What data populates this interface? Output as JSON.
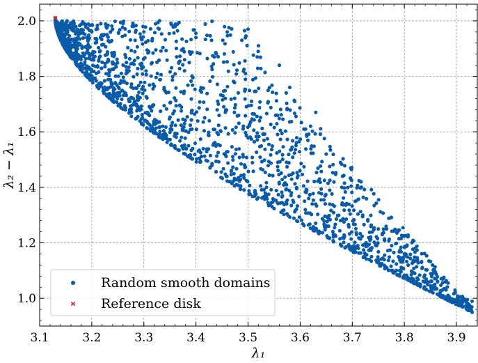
{
  "chart_data": {
    "type": "scatter",
    "title": "",
    "xlabel": "λ₁",
    "ylabel": "λ₂ − λ₁",
    "xlim": [
      3.1,
      3.94
    ],
    "ylim": [
      0.9,
      2.06
    ],
    "xticks": [
      "3.1",
      "3.2",
      "3.3",
      "3.4",
      "3.5",
      "3.6",
      "3.7",
      "3.8",
      "3.9"
    ],
    "yticks": [
      "1.0",
      "1.2",
      "1.4",
      "1.6",
      "1.8",
      "2.0"
    ],
    "grid": true,
    "legend_position": "lower-left",
    "series": [
      {
        "name": "Random smooth domains",
        "marker": "circle",
        "color": "#0a5ba8",
        "approximate_point_count": 2000,
        "envelope_description": "cloud bounded below by a curve from (3.13, 2.01) down to (3.93, 0.95) and above by a ridge from (3.15, 1.98) to (3.93, 0.96)",
        "points": [
          [
            3.13,
            2.01
          ],
          [
            3.14,
            1.99
          ],
          [
            3.15,
            1.97
          ],
          [
            3.16,
            1.98
          ],
          [
            3.17,
            1.96
          ],
          [
            3.19,
            1.94
          ],
          [
            3.2,
            1.96
          ],
          [
            3.22,
            1.95
          ],
          [
            3.24,
            1.97
          ],
          [
            3.26,
            1.99
          ],
          [
            3.28,
            1.98
          ],
          [
            3.3,
            1.96
          ],
          [
            3.33,
            2.0
          ],
          [
            3.36,
            1.98
          ],
          [
            3.4,
            1.94
          ],
          [
            3.43,
            1.93
          ],
          [
            3.46,
            1.96
          ],
          [
            3.5,
            1.97
          ],
          [
            3.52,
            1.91
          ],
          [
            3.56,
            1.84
          ],
          [
            3.58,
            1.76
          ],
          [
            3.62,
            1.62
          ],
          [
            3.63,
            1.67
          ],
          [
            3.65,
            1.52
          ],
          [
            3.68,
            1.4
          ],
          [
            3.72,
            1.3
          ],
          [
            3.75,
            1.25
          ],
          [
            3.8,
            1.16
          ],
          [
            3.82,
            1.09
          ],
          [
            3.85,
            1.06
          ],
          [
            3.88,
            1.03
          ],
          [
            3.9,
            0.98
          ],
          [
            3.92,
            0.96
          ],
          [
            3.93,
            0.95
          ]
        ]
      },
      {
        "name": "Reference disk",
        "marker": "x",
        "color": "#e41a1c",
        "points": [
          [
            3.13,
            2.01
          ]
        ]
      }
    ]
  }
}
